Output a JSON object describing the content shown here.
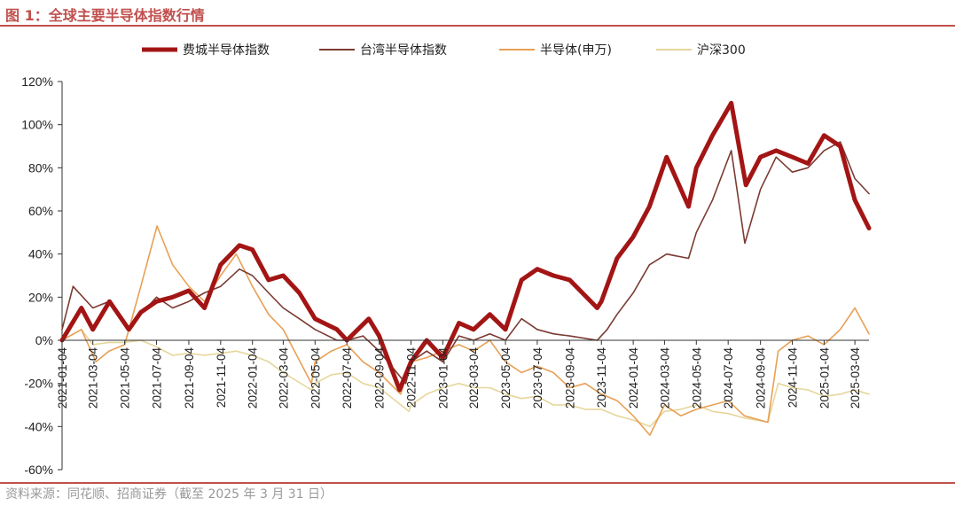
{
  "figure": {
    "title": "图 1：全球主要半导体指数行情",
    "source": "资料来源：同花顺、招商证券（截至 2025 年 3 月 31 日）"
  },
  "colors": {
    "accent": "#c0504d",
    "sox": "#a31515",
    "taiwan": "#7b3b33",
    "sw_semi": "#e8a055",
    "csi300": "#e6d69a"
  },
  "chart_data": {
    "type": "line",
    "ylim": [
      -0.6,
      1.2
    ],
    "yticks": [
      -0.6,
      -0.4,
      -0.2,
      0,
      0.2,
      0.4,
      0.6,
      0.8,
      1.0,
      1.2
    ],
    "ytick_labels": [
      "-60%",
      "-40%",
      "-20%",
      "0%",
      "20%",
      "40%",
      "60%",
      "80%",
      "100%",
      "120%"
    ],
    "x_range": [
      "2021-01-04",
      "2025-03-31"
    ],
    "x_ticks": [
      "2021-01-04",
      "2021-03-04",
      "2021-05-04",
      "2021-07-04",
      "2021-09-04",
      "2021-11-04",
      "2022-01-04",
      "2022-03-04",
      "2022-05-04",
      "2022-07-04",
      "2022-09-04",
      "2022-11-04",
      "2023-01-04",
      "2023-03-04",
      "2023-05-04",
      "2023-07-04",
      "2023-09-04",
      "2023-11-04",
      "2024-01-04",
      "2024-03-04",
      "2024-05-04",
      "2024-07-04",
      "2024-09-04",
      "2024-11-04",
      "2025-01-04",
      "2025-03-04"
    ],
    "legend_position": "top",
    "grid": false,
    "series": [
      {
        "name": "费城半导体指数",
        "color": "#a31515",
        "points": [
          [
            "2021-01-04",
            0.0
          ],
          [
            "2021-02-10",
            0.15
          ],
          [
            "2021-03-04",
            0.05
          ],
          [
            "2021-04-05",
            0.18
          ],
          [
            "2021-05-12",
            0.05
          ],
          [
            "2021-06-04",
            0.13
          ],
          [
            "2021-07-04",
            0.18
          ],
          [
            "2021-08-04",
            0.2
          ],
          [
            "2021-09-04",
            0.23
          ],
          [
            "2021-10-04",
            0.15
          ],
          [
            "2021-11-04",
            0.35
          ],
          [
            "2021-12-10",
            0.44
          ],
          [
            "2022-01-04",
            0.42
          ],
          [
            "2022-02-04",
            0.28
          ],
          [
            "2022-03-04",
            0.3
          ],
          [
            "2022-04-04",
            0.22
          ],
          [
            "2022-05-04",
            0.1
          ],
          [
            "2022-06-15",
            0.05
          ],
          [
            "2022-07-04",
            0.0
          ],
          [
            "2022-08-15",
            0.1
          ],
          [
            "2022-09-04",
            0.02
          ],
          [
            "2022-10-13",
            -0.23
          ],
          [
            "2022-11-04",
            -0.1
          ],
          [
            "2022-12-04",
            0.0
          ],
          [
            "2023-01-04",
            -0.08
          ],
          [
            "2023-02-04",
            0.08
          ],
          [
            "2023-03-04",
            0.05
          ],
          [
            "2023-04-04",
            0.12
          ],
          [
            "2023-05-04",
            0.05
          ],
          [
            "2023-06-04",
            0.28
          ],
          [
            "2023-07-04",
            0.33
          ],
          [
            "2023-08-04",
            0.3
          ],
          [
            "2023-09-04",
            0.28
          ],
          [
            "2023-10-27",
            0.15
          ],
          [
            "2023-11-04",
            0.18
          ],
          [
            "2023-12-04",
            0.38
          ],
          [
            "2024-01-04",
            0.48
          ],
          [
            "2024-02-04",
            0.62
          ],
          [
            "2024-03-08",
            0.85
          ],
          [
            "2024-04-19",
            0.62
          ],
          [
            "2024-05-04",
            0.8
          ],
          [
            "2024-06-04",
            0.95
          ],
          [
            "2024-07-10",
            1.1
          ],
          [
            "2024-08-07",
            0.72
          ],
          [
            "2024-09-04",
            0.85
          ],
          [
            "2024-10-04",
            0.88
          ],
          [
            "2024-11-04",
            0.85
          ],
          [
            "2024-12-04",
            0.82
          ],
          [
            "2025-01-04",
            0.95
          ],
          [
            "2025-02-04",
            0.9
          ],
          [
            "2025-03-04",
            0.65
          ],
          [
            "2025-03-31",
            0.52
          ]
        ]
      },
      {
        "name": "台湾半导体指数",
        "color": "#7b3b33",
        "points": [
          [
            "2021-01-04",
            0.05
          ],
          [
            "2021-01-25",
            0.25
          ],
          [
            "2021-03-04",
            0.15
          ],
          [
            "2021-04-04",
            0.18
          ],
          [
            "2021-05-12",
            0.05
          ],
          [
            "2021-06-04",
            0.12
          ],
          [
            "2021-07-04",
            0.2
          ],
          [
            "2021-08-04",
            0.15
          ],
          [
            "2021-09-04",
            0.18
          ],
          [
            "2021-10-04",
            0.22
          ],
          [
            "2021-11-04",
            0.25
          ],
          [
            "2021-12-10",
            0.33
          ],
          [
            "2022-01-04",
            0.3
          ],
          [
            "2022-02-04",
            0.22
          ],
          [
            "2022-03-04",
            0.15
          ],
          [
            "2022-04-04",
            0.1
          ],
          [
            "2022-05-04",
            0.05
          ],
          [
            "2022-06-15",
            0.0
          ],
          [
            "2022-07-04",
            0.0
          ],
          [
            "2022-08-04",
            0.02
          ],
          [
            "2022-09-04",
            -0.05
          ],
          [
            "2022-10-25",
            -0.2
          ],
          [
            "2022-11-04",
            -0.1
          ],
          [
            "2022-12-04",
            -0.05
          ],
          [
            "2023-01-04",
            -0.1
          ],
          [
            "2023-02-04",
            0.02
          ],
          [
            "2023-03-04",
            0.0
          ],
          [
            "2023-04-04",
            0.03
          ],
          [
            "2023-05-04",
            0.0
          ],
          [
            "2023-06-04",
            0.1
          ],
          [
            "2023-07-04",
            0.05
          ],
          [
            "2023-08-04",
            0.03
          ],
          [
            "2023-09-04",
            0.02
          ],
          [
            "2023-10-27",
            0.0
          ],
          [
            "2023-11-15",
            0.05
          ],
          [
            "2023-12-04",
            0.12
          ],
          [
            "2024-01-04",
            0.22
          ],
          [
            "2024-02-04",
            0.35
          ],
          [
            "2024-03-08",
            0.4
          ],
          [
            "2024-04-19",
            0.38
          ],
          [
            "2024-05-04",
            0.5
          ],
          [
            "2024-06-04",
            0.65
          ],
          [
            "2024-07-10",
            0.88
          ],
          [
            "2024-08-05",
            0.45
          ],
          [
            "2024-09-04",
            0.7
          ],
          [
            "2024-10-04",
            0.85
          ],
          [
            "2024-11-04",
            0.78
          ],
          [
            "2024-12-04",
            0.8
          ],
          [
            "2025-01-04",
            0.88
          ],
          [
            "2025-02-04",
            0.92
          ],
          [
            "2025-03-04",
            0.75
          ],
          [
            "2025-03-31",
            0.68
          ]
        ]
      },
      {
        "name": "半导体(申万)",
        "color": "#e8a055",
        "points": [
          [
            "2021-01-04",
            0.0
          ],
          [
            "2021-02-10",
            0.05
          ],
          [
            "2021-03-10",
            -0.1
          ],
          [
            "2021-04-04",
            -0.05
          ],
          [
            "2021-05-04",
            -0.02
          ],
          [
            "2021-06-04",
            0.25
          ],
          [
            "2021-07-05",
            0.53
          ],
          [
            "2021-08-04",
            0.35
          ],
          [
            "2021-09-04",
            0.25
          ],
          [
            "2021-10-04",
            0.18
          ],
          [
            "2021-11-04",
            0.3
          ],
          [
            "2021-12-04",
            0.4
          ],
          [
            "2022-01-04",
            0.25
          ],
          [
            "2022-02-04",
            0.12
          ],
          [
            "2022-03-04",
            0.05
          ],
          [
            "2022-04-27",
            -0.2
          ],
          [
            "2022-05-04",
            -0.1
          ],
          [
            "2022-06-04",
            -0.05
          ],
          [
            "2022-07-04",
            -0.02
          ],
          [
            "2022-08-04",
            -0.1
          ],
          [
            "2022-09-04",
            -0.15
          ],
          [
            "2022-10-15",
            -0.25
          ],
          [
            "2022-11-04",
            -0.1
          ],
          [
            "2022-12-04",
            -0.08
          ],
          [
            "2023-01-04",
            -0.05
          ],
          [
            "2023-02-04",
            -0.02
          ],
          [
            "2023-03-04",
            -0.05
          ],
          [
            "2023-04-04",
            0.0
          ],
          [
            "2023-05-04",
            -0.1
          ],
          [
            "2023-06-04",
            -0.15
          ],
          [
            "2023-07-04",
            -0.12
          ],
          [
            "2023-08-04",
            -0.15
          ],
          [
            "2023-09-04",
            -0.22
          ],
          [
            "2023-10-04",
            -0.2
          ],
          [
            "2023-11-04",
            -0.25
          ],
          [
            "2023-12-04",
            -0.28
          ],
          [
            "2024-01-04",
            -0.35
          ],
          [
            "2024-02-05",
            -0.44
          ],
          [
            "2024-03-04",
            -0.3
          ],
          [
            "2024-04-04",
            -0.35
          ],
          [
            "2024-05-04",
            -0.32
          ],
          [
            "2024-06-04",
            -0.3
          ],
          [
            "2024-07-04",
            -0.28
          ],
          [
            "2024-08-04",
            -0.35
          ],
          [
            "2024-09-18",
            -0.38
          ],
          [
            "2024-10-08",
            -0.05
          ],
          [
            "2024-11-04",
            0.0
          ],
          [
            "2024-12-04",
            0.02
          ],
          [
            "2025-01-04",
            -0.02
          ],
          [
            "2025-02-04",
            0.05
          ],
          [
            "2025-03-04",
            0.15
          ],
          [
            "2025-03-31",
            0.03
          ]
        ]
      },
      {
        "name": "沪深300",
        "color": "#e6d69a",
        "points": [
          [
            "2021-01-04",
            0.0
          ],
          [
            "2021-02-10",
            0.05
          ],
          [
            "2021-03-04",
            -0.02
          ],
          [
            "2021-04-04",
            -0.01
          ],
          [
            "2021-05-04",
            -0.01
          ],
          [
            "2021-06-04",
            0.0
          ],
          [
            "2021-07-04",
            -0.03
          ],
          [
            "2021-08-04",
            -0.07
          ],
          [
            "2021-09-04",
            -0.06
          ],
          [
            "2021-10-04",
            -0.07
          ],
          [
            "2021-11-04",
            -0.06
          ],
          [
            "2021-12-04",
            -0.05
          ],
          [
            "2022-01-04",
            -0.07
          ],
          [
            "2022-02-04",
            -0.1
          ],
          [
            "2022-03-04",
            -0.15
          ],
          [
            "2022-04-27",
            -0.23
          ],
          [
            "2022-05-04",
            -0.2
          ],
          [
            "2022-06-04",
            -0.16
          ],
          [
            "2022-07-04",
            -0.15
          ],
          [
            "2022-08-04",
            -0.2
          ],
          [
            "2022-09-04",
            -0.22
          ],
          [
            "2022-10-31",
            -0.33
          ],
          [
            "2022-11-04",
            -0.3
          ],
          [
            "2022-12-04",
            -0.25
          ],
          [
            "2023-01-04",
            -0.22
          ],
          [
            "2023-02-04",
            -0.2
          ],
          [
            "2023-03-04",
            -0.22
          ],
          [
            "2023-04-04",
            -0.22
          ],
          [
            "2023-05-04",
            -0.25
          ],
          [
            "2023-06-04",
            -0.27
          ],
          [
            "2023-07-04",
            -0.26
          ],
          [
            "2023-08-04",
            -0.3
          ],
          [
            "2023-09-04",
            -0.3
          ],
          [
            "2023-10-04",
            -0.32
          ],
          [
            "2023-11-04",
            -0.32
          ],
          [
            "2023-12-04",
            -0.35
          ],
          [
            "2024-01-04",
            -0.37
          ],
          [
            "2024-02-05",
            -0.4
          ],
          [
            "2024-03-04",
            -0.33
          ],
          [
            "2024-04-04",
            -0.32
          ],
          [
            "2024-05-04",
            -0.3
          ],
          [
            "2024-06-04",
            -0.33
          ],
          [
            "2024-07-04",
            -0.34
          ],
          [
            "2024-08-04",
            -0.36
          ],
          [
            "2024-09-18",
            -0.38
          ],
          [
            "2024-10-08",
            -0.2
          ],
          [
            "2024-11-04",
            -0.22
          ],
          [
            "2024-12-04",
            -0.23
          ],
          [
            "2025-01-04",
            -0.26
          ],
          [
            "2025-02-04",
            -0.25
          ],
          [
            "2025-03-04",
            -0.23
          ],
          [
            "2025-03-31",
            -0.25
          ]
        ]
      }
    ]
  }
}
